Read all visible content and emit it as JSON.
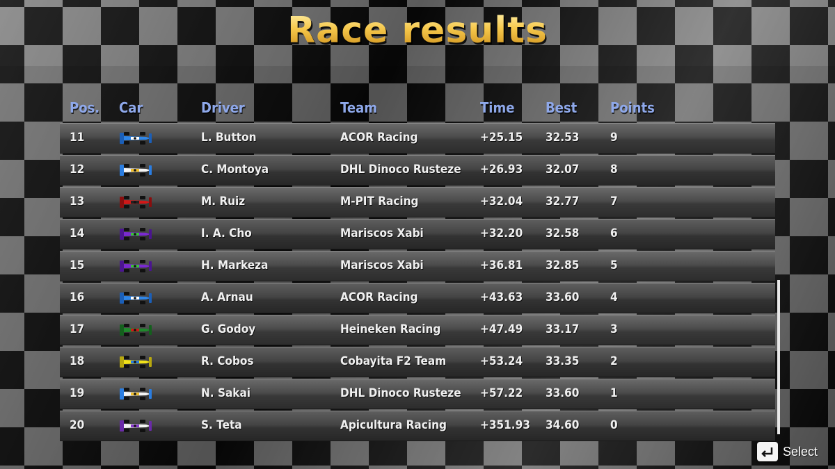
{
  "title": "Race results",
  "columns": {
    "pos": "Pos.",
    "car": "Car",
    "driver": "Driver",
    "team": "Team",
    "time": "Time",
    "best": "Best",
    "points": "Points"
  },
  "rows": [
    {
      "pos": "11",
      "driver": "L. Button",
      "team": "ACOR Racing",
      "time": "+25.15",
      "best": "32.53",
      "points": "9",
      "car_colors": {
        "body": "#2f86e8",
        "accent": "#ffffff",
        "wing": "#1b5fb8"
      }
    },
    {
      "pos": "12",
      "driver": "C. Montoya",
      "team": "DHL Dinoco Rusteze",
      "time": "+26.93",
      "best": "32.07",
      "points": "8",
      "car_colors": {
        "body": "#f4f4f4",
        "accent": "#f2c02a",
        "wing": "#2a7de1"
      }
    },
    {
      "pos": "13",
      "driver": "M. Ruiz",
      "team": "M-PIT Racing",
      "time": "+32.04",
      "best": "32.77",
      "points": "7",
      "car_colors": {
        "body": "#d01818",
        "accent": "#222222",
        "wing": "#8a0e0e"
      }
    },
    {
      "pos": "14",
      "driver": "I. A. Cho",
      "team": "Mariscos Xabi",
      "time": "+32.20",
      "best": "32.58",
      "points": "6",
      "car_colors": {
        "body": "#7a2ad0",
        "accent": "#3cc23c",
        "wing": "#4b1590"
      }
    },
    {
      "pos": "15",
      "driver": "H. Markeza",
      "team": "Mariscos Xabi",
      "time": "+36.81",
      "best": "32.85",
      "points": "5",
      "car_colors": {
        "body": "#7a2ad0",
        "accent": "#3cc23c",
        "wing": "#4b1590"
      }
    },
    {
      "pos": "16",
      "driver": "A. Arnau",
      "team": "ACOR Racing",
      "time": "+43.63",
      "best": "33.60",
      "points": "4",
      "car_colors": {
        "body": "#2f86e8",
        "accent": "#ffffff",
        "wing": "#1b5fb8"
      }
    },
    {
      "pos": "17",
      "driver": "G. Godoy",
      "team": "Heineken Racing",
      "time": "+47.49",
      "best": "33.17",
      "points": "3",
      "car_colors": {
        "body": "#1f8a2c",
        "accent": "#d01818",
        "wing": "#14601d"
      }
    },
    {
      "pos": "18",
      "driver": "R. Cobos",
      "team": "Cobayita F2 Team",
      "time": "+53.24",
      "best": "33.35",
      "points": "2",
      "car_colors": {
        "body": "#f2e21a",
        "accent": "#2a7de1",
        "wing": "#b8a80e"
      }
    },
    {
      "pos": "19",
      "driver": "N. Sakai",
      "team": "DHL Dinoco Rusteze",
      "time": "+57.22",
      "best": "33.60",
      "points": "1",
      "car_colors": {
        "body": "#f4f4f4",
        "accent": "#f2c02a",
        "wing": "#2a7de1"
      }
    },
    {
      "pos": "20",
      "driver": "S. Teta",
      "team": "Apicultura Racing",
      "time": "+351.93",
      "best": "34.60",
      "points": "0",
      "car_colors": {
        "body": "#f4f4f4",
        "accent": "#8a3ad0",
        "wing": "#6a2aa8"
      }
    }
  ],
  "footer": {
    "select_label": "Select",
    "select_icon": "enter-key-icon"
  }
}
